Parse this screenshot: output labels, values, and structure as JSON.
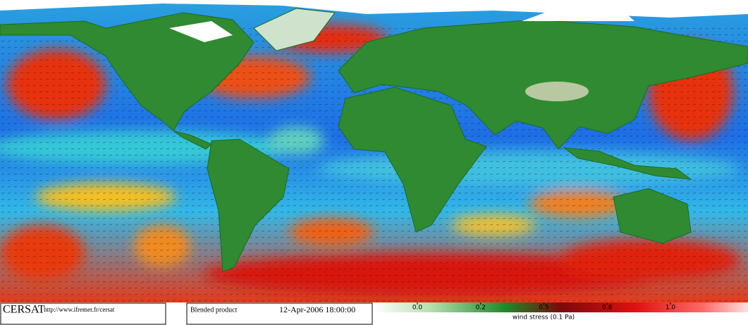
{
  "footer": {
    "logo": "CERSAT",
    "url": "http://www.ifremer.fr/cersat",
    "product": "Blended product",
    "datetime": "12-Apr-2006 18:00:00"
  },
  "colorbar": {
    "title": "wind stress (0.1 Pa)",
    "ticks": [
      {
        "value": 0,
        "label": "0.0"
      },
      0.2,
      0.5,
      0.8,
      {
        "value": 1,
        "label": "1.0"
      }
    ]
  }
}
